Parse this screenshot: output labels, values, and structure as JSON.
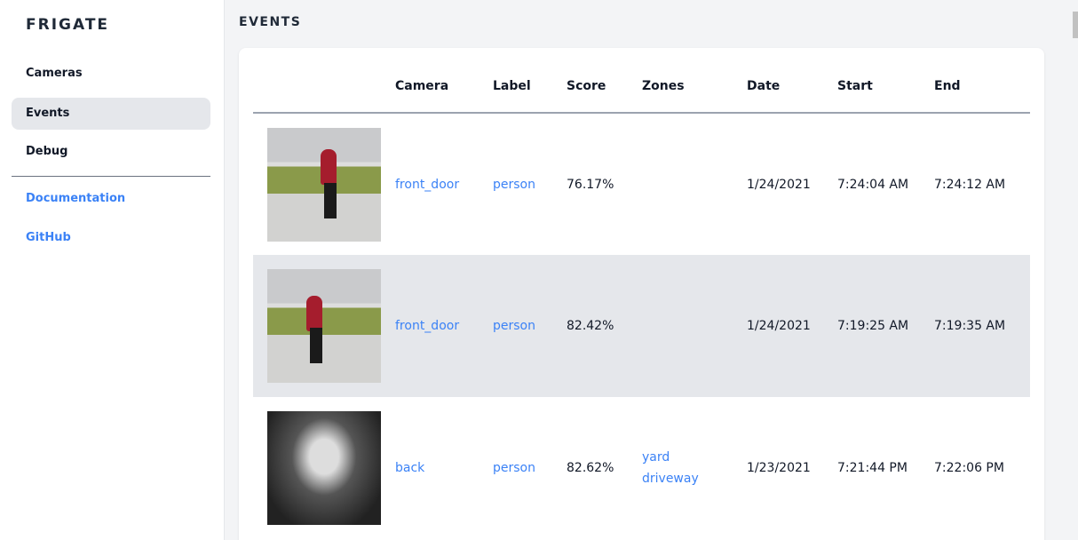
{
  "sidebar": {
    "brand": "FRIGATE",
    "items": [
      {
        "label": "Cameras"
      },
      {
        "label": "Events"
      },
      {
        "label": "Debug"
      }
    ],
    "links": [
      {
        "label": "Documentation"
      },
      {
        "label": "GitHub"
      }
    ]
  },
  "page": {
    "title": "EVENTS"
  },
  "table": {
    "headers": [
      "",
      "Camera",
      "Label",
      "Score",
      "Zones",
      "Date",
      "Start",
      "End"
    ],
    "rows": [
      {
        "camera": "front_door",
        "label": "person",
        "score": "76.17%",
        "zones": [
          "",
          ""
        ],
        "date": "1/24/2021",
        "start": "7:24:04 AM",
        "end": "7:24:12 AM"
      },
      {
        "camera": "front_door",
        "label": "person",
        "score": "82.42%",
        "zones": [
          "",
          ""
        ],
        "date": "1/24/2021",
        "start": "7:19:25 AM",
        "end": "7:19:35 AM"
      },
      {
        "camera": "back",
        "label": "person",
        "score": "82.62%",
        "zones": [
          "yard",
          "driveway"
        ],
        "date": "1/23/2021",
        "start": "7:21:44 PM",
        "end": "7:22:06 PM"
      }
    ]
  },
  "colors": {
    "accent": "#3b82f6",
    "active_bg": "#e5e7eb"
  }
}
